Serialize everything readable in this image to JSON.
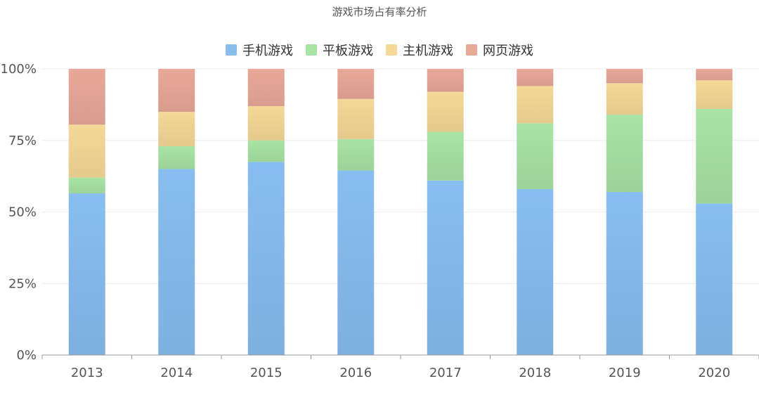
{
  "chart_data": {
    "type": "bar",
    "stacked": true,
    "title": "游戏市场占有率分析",
    "categories": [
      "2013",
      "2014",
      "2015",
      "2016",
      "2017",
      "2018",
      "2019",
      "2020"
    ],
    "series": [
      {
        "name": "手机游戏",
        "color": "#88bdf0",
        "values": [
          56.5,
          65,
          67.5,
          64.5,
          61,
          58,
          57,
          53
        ]
      },
      {
        "name": "平板游戏",
        "color": "#a8e3a4",
        "values": [
          5.5,
          8,
          7.5,
          11,
          17,
          23,
          27,
          33
        ]
      },
      {
        "name": "主机游戏",
        "color": "#f5d898",
        "values": [
          18.5,
          12,
          12,
          14,
          14,
          13,
          11,
          10
        ]
      },
      {
        "name": "网页游戏",
        "color": "#e8a898",
        "values": [
          19.5,
          15,
          13,
          10.5,
          8,
          6,
          5,
          4
        ]
      }
    ],
    "yticks": [
      "0%",
      "25%",
      "50%",
      "75%",
      "100%"
    ],
    "ylim": [
      0,
      100
    ],
    "grid": true,
    "legend_position": "top-center"
  }
}
